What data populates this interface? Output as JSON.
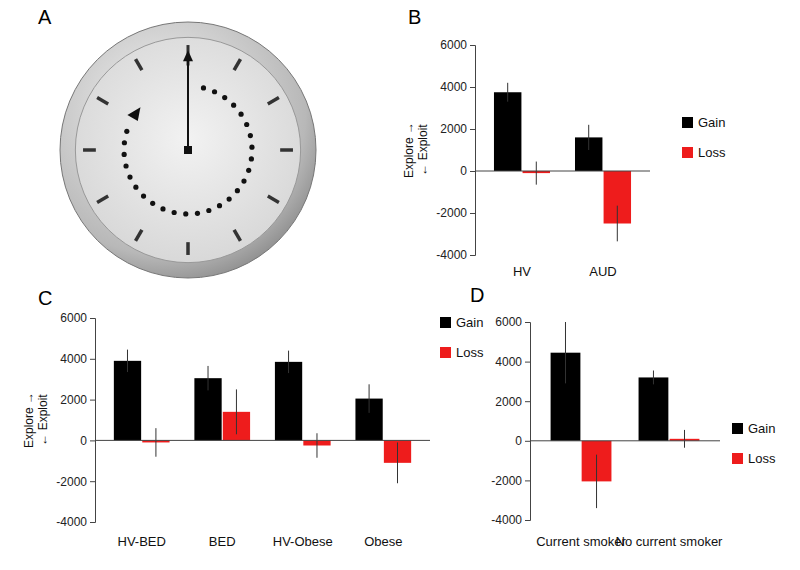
{
  "panel_a": {
    "title": "A"
  },
  "chart_data": [
    {
      "type": "bar",
      "title": "B",
      "ylabel": [
        "Explore →",
        "← Exploit"
      ],
      "categories": [
        "HV",
        "AUD"
      ],
      "series": [
        {
          "name": "Gain",
          "color": "#000000",
          "values": [
            3750,
            1600
          ],
          "errors": [
            450,
            600
          ]
        },
        {
          "name": "Loss",
          "color": "#ee1c1c",
          "values": [
            -100,
            -2500
          ],
          "errors": [
            550,
            850
          ]
        }
      ],
      "ylim": [
        -4000,
        6000
      ],
      "yticks": [
        -4000,
        -2000,
        0,
        2000,
        4000,
        6000
      ],
      "legend": "right"
    },
    {
      "type": "bar",
      "title": "C",
      "ylabel": [
        "Explore →",
        "← Exploit"
      ],
      "categories": [
        "HV-BED",
        "BED",
        "HV-Obese",
        "Obese"
      ],
      "series": [
        {
          "name": "Gain",
          "color": "#000000",
          "values": [
            3900,
            3050,
            3850,
            2050
          ],
          "errors": [
            550,
            600,
            550,
            700
          ]
        },
        {
          "name": "Loss",
          "color": "#ee1c1c",
          "values": [
            -100,
            1400,
            -250,
            -1100
          ],
          "errors": [
            700,
            1100,
            600,
            1000
          ]
        }
      ],
      "ylim": [
        -4000,
        6000
      ],
      "yticks": [
        -4000,
        -2000,
        0,
        2000,
        4000,
        6000
      ],
      "legend": "right"
    },
    {
      "type": "bar",
      "title": "D",
      "categories": [
        "Current smoker",
        "No current smoker"
      ],
      "series": [
        {
          "name": "Gain",
          "color": "#000000",
          "values": [
            4450,
            3200
          ],
          "errors": [
            1550,
            350
          ]
        },
        {
          "name": "Loss",
          "color": "#ee1c1c",
          "values": [
            -2050,
            100
          ],
          "errors": [
            1350,
            450
          ]
        }
      ],
      "ylim": [
        -4000,
        6000
      ],
      "yticks": [
        -4000,
        -2000,
        0,
        2000,
        4000,
        6000
      ],
      "legend": "right"
    }
  ]
}
